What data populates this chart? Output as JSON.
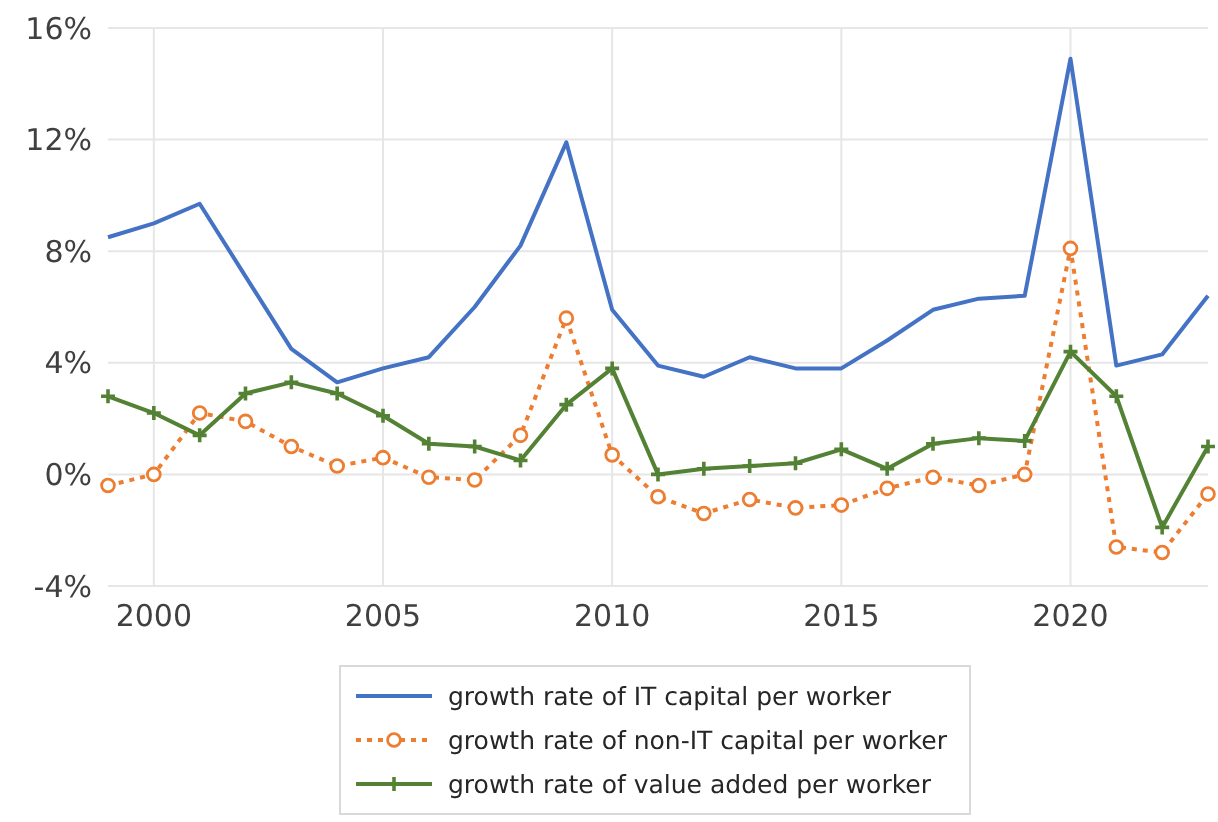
{
  "chart_data": {
    "type": "line",
    "x": [
      1999,
      2000,
      2001,
      2002,
      2003,
      2004,
      2005,
      2006,
      2007,
      2008,
      2009,
      2010,
      2011,
      2012,
      2013,
      2014,
      2015,
      2016,
      2017,
      2018,
      2019,
      2020,
      2021,
      2022,
      2023
    ],
    "series": [
      {
        "name": "growth rate of IT capital per worker",
        "color": "#4472c4",
        "marker": "none",
        "line_style": "solid",
        "values": [
          8.5,
          9.0,
          9.7,
          7.1,
          4.5,
          3.3,
          3.8,
          4.2,
          6.0,
          8.2,
          11.9,
          5.9,
          3.9,
          3.5,
          4.2,
          3.8,
          3.8,
          4.8,
          5.9,
          6.3,
          6.4,
          14.9,
          3.9,
          4.3,
          6.4
        ]
      },
      {
        "name": "growth rate of non-IT capital per worker",
        "color": "#ed7d31",
        "marker": "circle",
        "line_style": "dotted",
        "values": [
          -0.4,
          0.0,
          2.2,
          1.9,
          1.0,
          0.3,
          0.6,
          -0.1,
          -0.2,
          1.4,
          5.6,
          0.7,
          -0.8,
          -1.4,
          -0.9,
          -1.2,
          -1.1,
          -0.5,
          -0.1,
          -0.4,
          0.0,
          8.1,
          -2.6,
          -2.8,
          -0.7
        ]
      },
      {
        "name": "growth rate of value added per worker",
        "color": "#548235",
        "marker": "cross",
        "line_style": "solid",
        "values": [
          2.8,
          2.2,
          1.4,
          2.9,
          3.3,
          2.9,
          2.1,
          1.1,
          1.0,
          0.5,
          2.5,
          3.8,
          0.0,
          0.2,
          0.3,
          0.4,
          0.9,
          0.2,
          1.1,
          1.3,
          1.2,
          4.4,
          2.8,
          -1.9,
          1.0
        ]
      }
    ],
    "xlim": [
      1999,
      2023
    ],
    "xticks": [
      2000,
      2005,
      2010,
      2015,
      2020
    ],
    "ylim": [
      -4,
      16
    ],
    "yticks": [
      {
        "value": -4,
        "label": "-4%"
      },
      {
        "value": 0,
        "label": "0%"
      },
      {
        "value": 4,
        "label": "4%"
      },
      {
        "value": 8,
        "label": "8%"
      },
      {
        "value": 12,
        "label": "12%"
      },
      {
        "value": 16,
        "label": "16%"
      }
    ],
    "grid": true,
    "legend": "bottom"
  }
}
